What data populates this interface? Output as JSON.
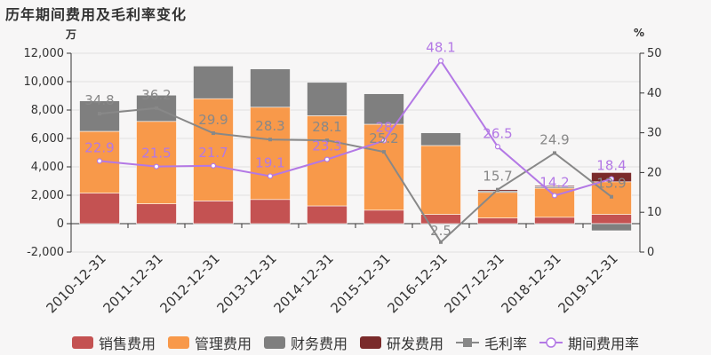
{
  "title": "历年期间费用及毛利率变化",
  "left_unit": "万",
  "right_unit": "%",
  "colors": {
    "sales": "#c45252",
    "admin": "#f8994a",
    "finance": "#7f7f7f",
    "rd": "#7a2b2b",
    "gross": "#888888",
    "period": "#b378e5",
    "label_gross": "#888888",
    "label_period": "#b378e5"
  },
  "chart_data": {
    "type": "bar",
    "stacked": true,
    "categories": [
      "2010-12-31",
      "2011-12-31",
      "2012-12-31",
      "2013-12-31",
      "2014-12-31",
      "2015-12-31",
      "2016-12-31",
      "2017-12-31",
      "2018-12-31",
      "2019-12-31"
    ],
    "left_axis": {
      "min": -2000,
      "max": 12000,
      "ticks": [
        -2000,
        0,
        2000,
        4000,
        6000,
        8000,
        10000,
        12000
      ],
      "tick_labels": [
        "-2,000",
        "0",
        "2,000",
        "4,000",
        "6,000",
        "8,000",
        "10,000",
        "12,000"
      ]
    },
    "right_axis": {
      "min": 0,
      "max": 50,
      "ticks": [
        0,
        10,
        20,
        30,
        40,
        50
      ],
      "tick_labels": [
        "0",
        "10",
        "20",
        "30",
        "40",
        "50"
      ]
    },
    "bar_series": [
      {
        "name": "销售费用",
        "key": "sales",
        "values": [
          2150,
          1400,
          1600,
          1700,
          1250,
          950,
          650,
          400,
          450,
          650
        ]
      },
      {
        "name": "管理费用",
        "key": "admin",
        "values": [
          4350,
          5800,
          7200,
          6500,
          6350,
          6050,
          4850,
          1800,
          2050,
          2300
        ]
      },
      {
        "name": "财务费用",
        "key": "finance",
        "values": [
          2150,
          1850,
          2300,
          2700,
          2350,
          2150,
          900,
          100,
          100,
          -500
        ]
      },
      {
        "name": "研发费用",
        "key": "rd",
        "values": [
          0,
          0,
          0,
          0,
          0,
          0,
          0,
          100,
          80,
          650
        ]
      }
    ],
    "line_series": [
      {
        "name": "毛利率",
        "key": "gross",
        "values": [
          34.8,
          36.2,
          29.9,
          28.3,
          28.1,
          25.2,
          2.5,
          15.7,
          24.9,
          13.9
        ],
        "labels": [
          "34.8",
          "36.2",
          "29.9",
          "28.3",
          "28.1",
          "25.2",
          "2.5",
          "15.7",
          "24.9",
          "13.9"
        ]
      },
      {
        "name": "期间费用率",
        "key": "period",
        "values": [
          22.9,
          21.5,
          21.7,
          19.1,
          23.3,
          28.0,
          48.1,
          26.5,
          14.2,
          18.4
        ],
        "labels": [
          "22.9",
          "21.5",
          "21.7",
          "19.1",
          "23.3",
          "28",
          "48.1",
          "26.5",
          "14.2",
          "18.4"
        ]
      }
    ]
  },
  "legend": [
    {
      "label": "销售费用",
      "key": "sales",
      "kind": "rect"
    },
    {
      "label": "管理费用",
      "key": "admin",
      "kind": "rect"
    },
    {
      "label": "财务费用",
      "key": "finance",
      "kind": "rect"
    },
    {
      "label": "研发费用",
      "key": "rd",
      "kind": "rect"
    },
    {
      "label": "毛利率",
      "key": "gross",
      "kind": "line-square"
    },
    {
      "label": "期间费用率",
      "key": "period",
      "kind": "line-circle"
    }
  ]
}
